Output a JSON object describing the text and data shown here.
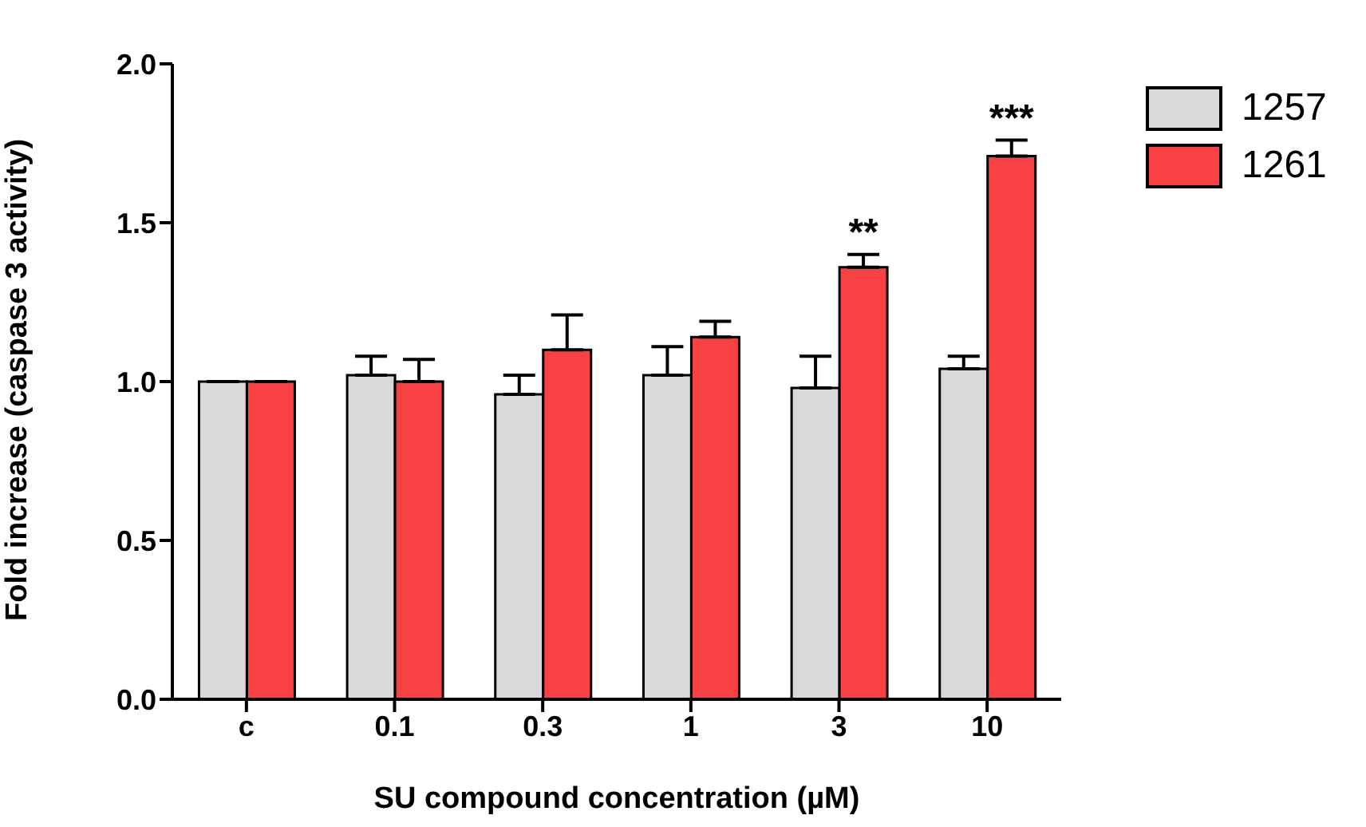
{
  "chart_data": {
    "type": "bar",
    "xlabel": "SU compound concentration (µM)",
    "ylabel": "Fold increase (caspase 3 activity)",
    "categories": [
      "c",
      "0.1",
      "0.3",
      "1",
      "3",
      "10"
    ],
    "series": [
      {
        "name": "1257",
        "color": "#d9d9d9",
        "values": [
          1.0,
          1.02,
          0.96,
          1.02,
          0.98,
          1.04
        ],
        "errors": [
          null,
          [
            1.02,
            1.08
          ],
          [
            0.96,
            1.02
          ],
          [
            1.02,
            1.11
          ],
          [
            0.98,
            1.08
          ],
          [
            1.04,
            1.08
          ]
        ]
      },
      {
        "name": "1261",
        "color": "#f94144",
        "values": [
          1.0,
          1.0,
          1.1,
          1.14,
          1.36,
          1.71
        ],
        "errors": [
          null,
          [
            1.0,
            1.07
          ],
          [
            1.1,
            1.21
          ],
          [
            1.14,
            1.19
          ],
          [
            1.36,
            1.4
          ],
          [
            1.71,
            1.76
          ]
        ]
      }
    ],
    "annotations": [
      {
        "text": "**",
        "x": "3",
        "y": 1.36
      },
      {
        "text": "***",
        "x": "10",
        "y": 1.71
      }
    ],
    "ylim": [
      0,
      2
    ],
    "yticks": [
      {
        "value": 0,
        "label": "0.0"
      },
      {
        "value": 0.5,
        "label": "0.5"
      },
      {
        "value": 1,
        "label": "1.0"
      },
      {
        "value": 1.5,
        "label": "1.5"
      },
      {
        "value": 2,
        "label": "2.0"
      }
    ],
    "grid": false,
    "legend": "top right"
  }
}
